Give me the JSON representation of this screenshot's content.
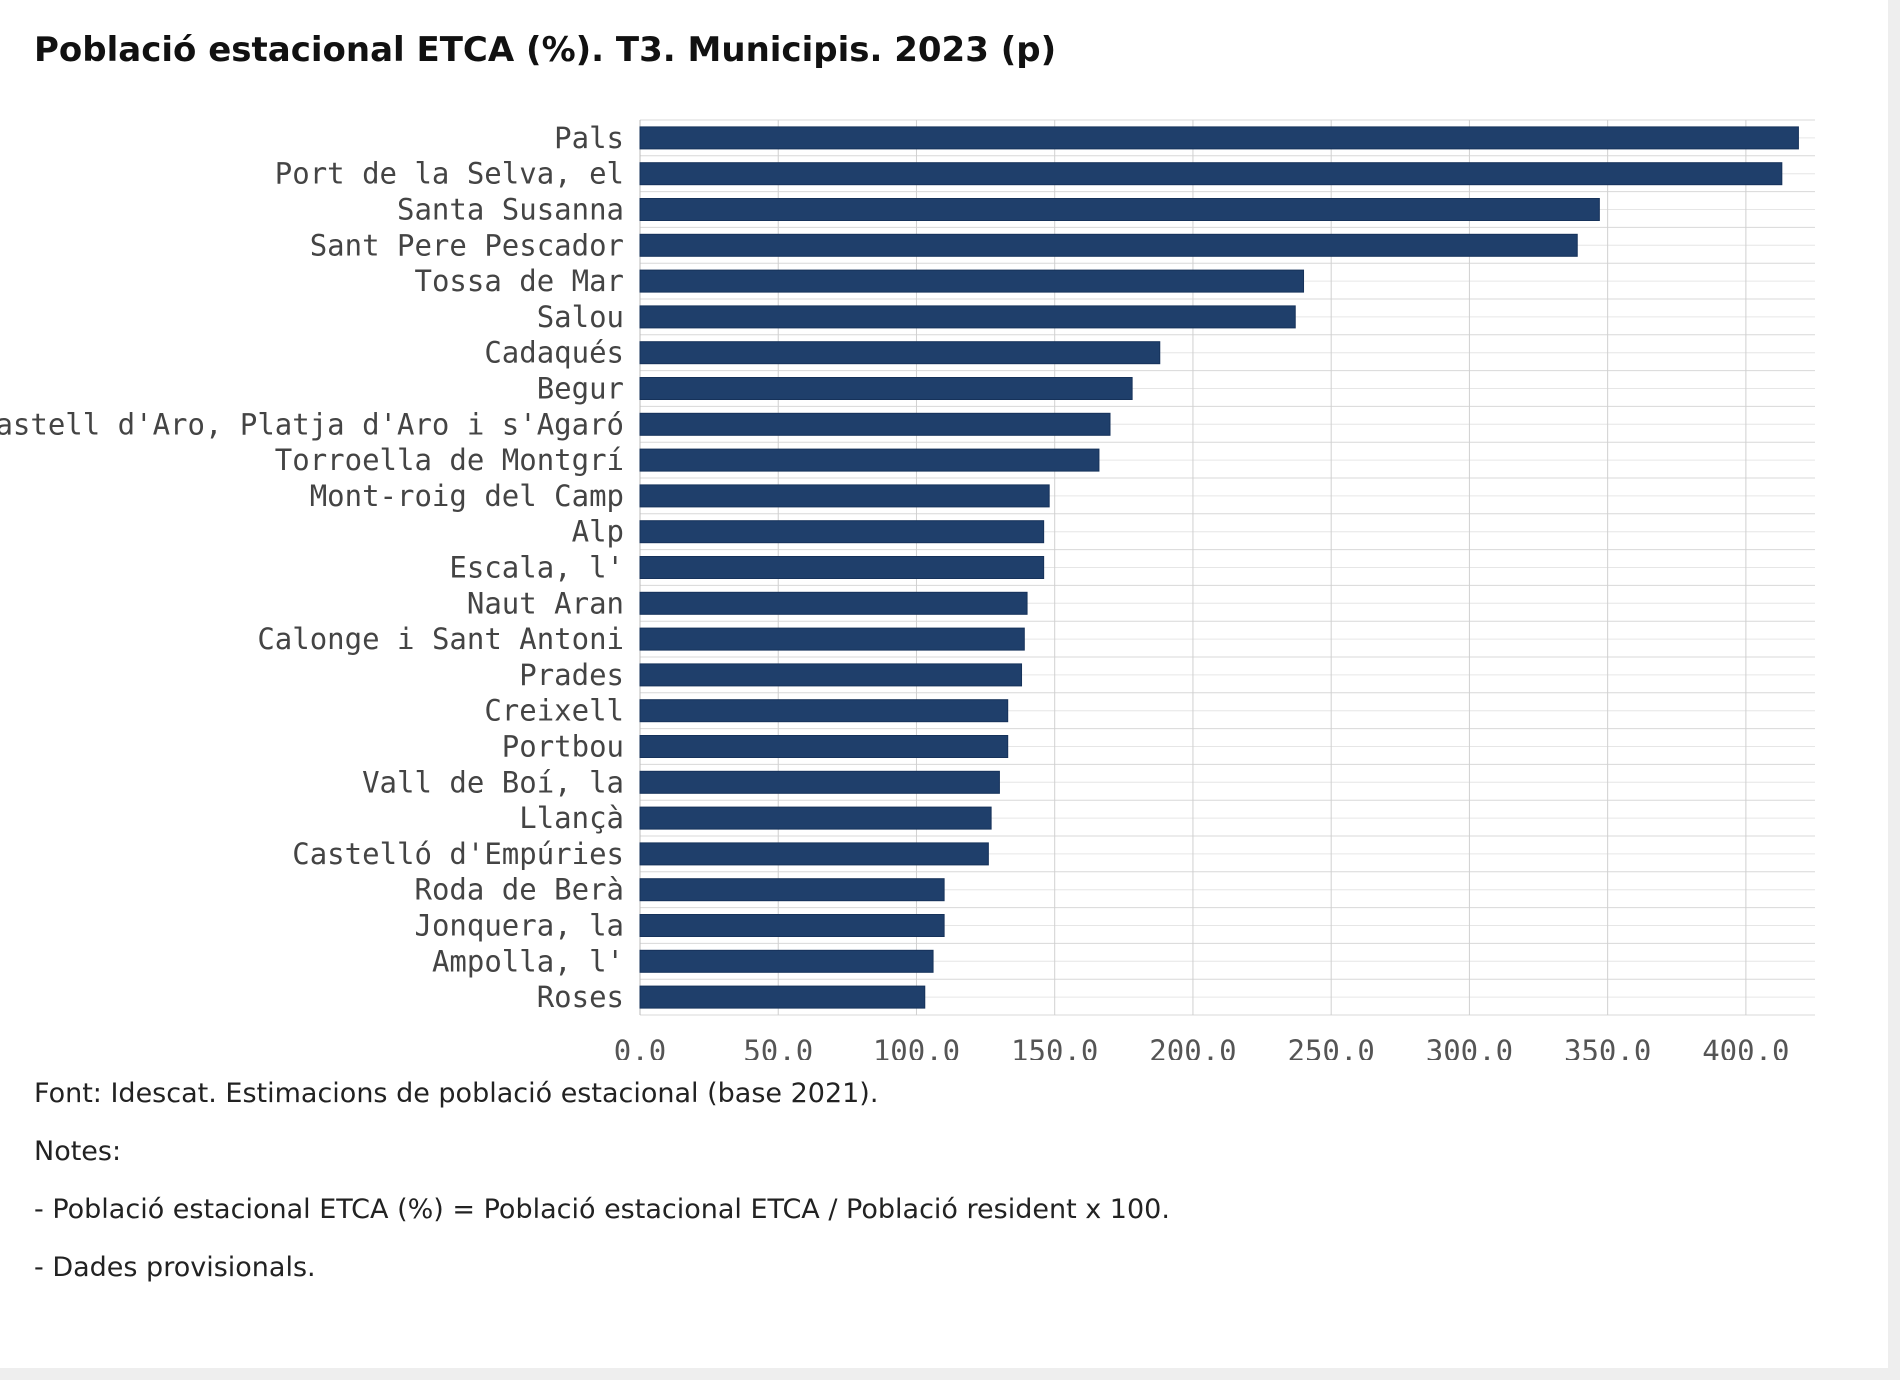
{
  "chart_data": {
    "type": "bar",
    "orientation": "horizontal",
    "title": "Població estacional ETCA (%). T3. Municipis. 2023 (p)",
    "categories": [
      "Pals",
      "Port de la Selva, el",
      "Santa Susanna",
      "Sant Pere Pescador",
      "Tossa de Mar",
      "Salou",
      "Cadaqués",
      "Begur",
      "Castell d'Aro, Platja d'Aro i s'Agaró",
      "Torroella de Montgrí",
      "Mont-roig del Camp",
      "Alp",
      "Escala, l'",
      "Naut Aran",
      "Calonge i Sant Antoni",
      "Prades",
      "Creixell",
      "Portbou",
      "Vall de Boí, la",
      "Llançà",
      "Castelló d'Empúries",
      "Roda de Berà",
      "Jonquera, la",
      "Ampolla, l'",
      "Roses"
    ],
    "values": [
      419,
      413,
      347,
      339,
      240,
      237,
      188,
      178,
      170,
      166,
      148,
      146,
      146,
      140,
      139,
      138,
      133,
      133,
      130,
      127,
      126,
      110,
      110,
      106,
      103
    ],
    "xlim": [
      0,
      425
    ],
    "xticks": [
      0,
      50,
      100,
      150,
      200,
      250,
      300,
      350,
      400
    ],
    "xtick_labels": [
      "0,0",
      "50,0",
      "100,0",
      "150,0",
      "200,0",
      "250,0",
      "300,0",
      "350,0",
      "400,0"
    ],
    "xlabel": "",
    "ylabel": "",
    "grid": true,
    "bar_color": "#1f3f6b"
  },
  "footer": {
    "source": "Font: Idescat. Estimacions de població estacional (base 2021).",
    "notes_label": "Notes:",
    "note_1": "- Població estacional ETCA (%) = Població estacional ETCA / Població resident x 100.",
    "note_2": "- Dades provisionals."
  }
}
